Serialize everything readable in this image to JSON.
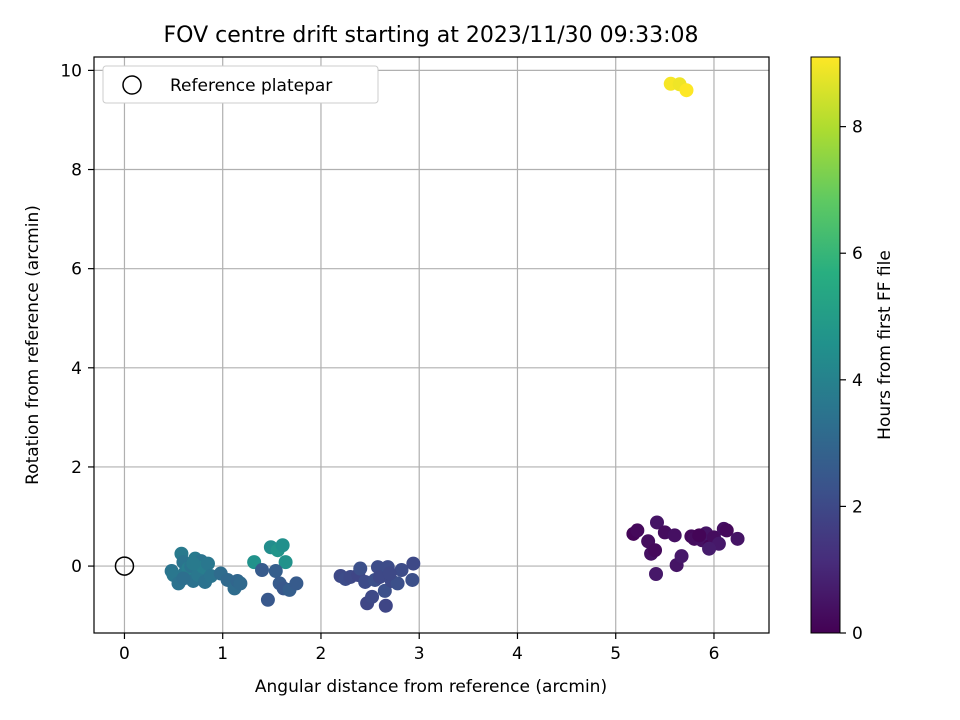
{
  "chart_data": {
    "type": "scatter",
    "title": "FOV centre drift starting at 2023/11/30 09:33:08",
    "xlabel": "Angular distance from reference (arcmin)",
    "ylabel": "Rotation from reference (arcmin)",
    "xlim": [
      -0.31,
      6.56
    ],
    "ylim": [
      -1.35,
      10.27
    ],
    "xticks": [
      0,
      1,
      2,
      3,
      4,
      5,
      6
    ],
    "yticks": [
      0,
      2,
      4,
      6,
      8,
      10
    ],
    "grid": true,
    "legend": {
      "placement": "top-left",
      "entries": [
        "Reference platepar"
      ]
    },
    "reference_point": {
      "x": 0,
      "y": 0
    },
    "colorbar": {
      "label": "Hours from first FF file",
      "min": 0,
      "max": 9.1,
      "ticks": [
        0,
        2,
        4,
        6,
        8
      ],
      "colormap": "viridis"
    },
    "points": [
      {
        "x": 5.18,
        "y": 0.65,
        "c": 0.1
      },
      {
        "x": 5.22,
        "y": 0.72,
        "c": 0.2
      },
      {
        "x": 5.33,
        "y": 0.5,
        "c": 0.3
      },
      {
        "x": 5.36,
        "y": 0.25,
        "c": 0.4
      },
      {
        "x": 5.4,
        "y": 0.32,
        "c": 0.2
      },
      {
        "x": 5.42,
        "y": 0.88,
        "c": 0.5
      },
      {
        "x": 5.41,
        "y": -0.16,
        "c": 0.6
      },
      {
        "x": 5.5,
        "y": 0.68,
        "c": 0.3
      },
      {
        "x": 5.6,
        "y": 0.62,
        "c": 0.4
      },
      {
        "x": 5.62,
        "y": 0.02,
        "c": 0.5
      },
      {
        "x": 5.67,
        "y": 0.2,
        "c": 0.6
      },
      {
        "x": 5.77,
        "y": 0.6,
        "c": 0.2
      },
      {
        "x": 5.8,
        "y": 0.55,
        "c": 0.3
      },
      {
        "x": 5.88,
        "y": 0.52,
        "c": 0.4
      },
      {
        "x": 5.92,
        "y": 0.66,
        "c": 0.5
      },
      {
        "x": 5.96,
        "y": 0.4,
        "c": 0.1
      },
      {
        "x": 6.0,
        "y": 0.58,
        "c": 0.3
      },
      {
        "x": 6.05,
        "y": 0.45,
        "c": 0.6
      },
      {
        "x": 6.1,
        "y": 0.75,
        "c": 0.4
      },
      {
        "x": 6.13,
        "y": 0.72,
        "c": 0.2
      },
      {
        "x": 6.24,
        "y": 0.55,
        "c": 0.5
      },
      {
        "x": 5.95,
        "y": 0.35,
        "c": 0.7
      },
      {
        "x": 5.85,
        "y": 0.62,
        "c": 0.1
      },
      {
        "x": 2.2,
        "y": -0.2,
        "c": 2.0
      },
      {
        "x": 2.25,
        "y": -0.26,
        "c": 2.1
      },
      {
        "x": 2.3,
        "y": -0.22,
        "c": 2.0
      },
      {
        "x": 2.38,
        "y": -0.18,
        "c": 1.9
      },
      {
        "x": 2.4,
        "y": -0.05,
        "c": 2.2
      },
      {
        "x": 2.45,
        "y": -0.32,
        "c": 2.1
      },
      {
        "x": 2.47,
        "y": -0.75,
        "c": 1.9
      },
      {
        "x": 2.52,
        "y": -0.62,
        "c": 2.0
      },
      {
        "x": 2.55,
        "y": -0.28,
        "c": 2.2
      },
      {
        "x": 2.58,
        "y": -0.02,
        "c": 2.1
      },
      {
        "x": 2.6,
        "y": -0.22,
        "c": 2.0
      },
      {
        "x": 2.65,
        "y": -0.5,
        "c": 2.2
      },
      {
        "x": 2.66,
        "y": -0.8,
        "c": 1.9
      },
      {
        "x": 2.68,
        "y": -0.02,
        "c": 2.1
      },
      {
        "x": 2.72,
        "y": -0.3,
        "c": 2.0
      },
      {
        "x": 2.78,
        "y": -0.35,
        "c": 2.2
      },
      {
        "x": 2.82,
        "y": -0.08,
        "c": 2.1
      },
      {
        "x": 2.94,
        "y": 0.05,
        "c": 2.0
      },
      {
        "x": 2.93,
        "y": -0.28,
        "c": 2.2
      },
      {
        "x": 2.7,
        "y": -0.15,
        "c": 2.0
      },
      {
        "x": 1.32,
        "y": 0.08,
        "c": 4.6
      },
      {
        "x": 1.49,
        "y": 0.38,
        "c": 4.4
      },
      {
        "x": 1.56,
        "y": 0.32,
        "c": 4.7
      },
      {
        "x": 1.61,
        "y": 0.42,
        "c": 4.5
      },
      {
        "x": 1.64,
        "y": 0.08,
        "c": 4.6
      },
      {
        "x": 1.4,
        "y": -0.08,
        "c": 2.6
      },
      {
        "x": 1.46,
        "y": -0.68,
        "c": 2.5
      },
      {
        "x": 1.54,
        "y": -0.1,
        "c": 2.7
      },
      {
        "x": 1.58,
        "y": -0.35,
        "c": 2.6
      },
      {
        "x": 1.62,
        "y": -0.45,
        "c": 2.5
      },
      {
        "x": 1.68,
        "y": -0.48,
        "c": 2.7
      },
      {
        "x": 1.75,
        "y": -0.35,
        "c": 2.6
      },
      {
        "x": 0.48,
        "y": -0.1,
        "c": 3.5
      },
      {
        "x": 0.5,
        "y": -0.18,
        "c": 3.6
      },
      {
        "x": 0.55,
        "y": -0.35,
        "c": 3.4
      },
      {
        "x": 0.58,
        "y": 0.25,
        "c": 3.7
      },
      {
        "x": 0.6,
        "y": 0.08,
        "c": 3.5
      },
      {
        "x": 0.62,
        "y": -0.12,
        "c": 3.6
      },
      {
        "x": 0.65,
        "y": -0.05,
        "c": 3.8
      },
      {
        "x": 0.68,
        "y": 0.0,
        "c": 3.5
      },
      {
        "x": 0.7,
        "y": -0.3,
        "c": 3.4
      },
      {
        "x": 0.72,
        "y": 0.15,
        "c": 3.7
      },
      {
        "x": 0.75,
        "y": -0.18,
        "c": 3.6
      },
      {
        "x": 0.78,
        "y": 0.1,
        "c": 3.5
      },
      {
        "x": 0.8,
        "y": -0.02,
        "c": 3.8
      },
      {
        "x": 0.82,
        "y": -0.32,
        "c": 3.4
      },
      {
        "x": 0.85,
        "y": 0.05,
        "c": 3.6
      },
      {
        "x": 0.88,
        "y": -0.2,
        "c": 3.5
      },
      {
        "x": 0.6,
        "y": -0.25,
        "c": 3.3
      },
      {
        "x": 0.7,
        "y": 0.05,
        "c": 3.7
      },
      {
        "x": 0.98,
        "y": -0.15,
        "c": 3.2
      },
      {
        "x": 1.05,
        "y": -0.28,
        "c": 3.1
      },
      {
        "x": 1.12,
        "y": -0.45,
        "c": 3.2
      },
      {
        "x": 1.15,
        "y": -0.3,
        "c": 3.0
      },
      {
        "x": 1.18,
        "y": -0.35,
        "c": 3.1
      },
      {
        "x": 5.56,
        "y": 9.73,
        "c": 9.0
      },
      {
        "x": 5.65,
        "y": 9.72,
        "c": 8.9
      },
      {
        "x": 5.72,
        "y": 9.6,
        "c": 9.1
      }
    ]
  }
}
